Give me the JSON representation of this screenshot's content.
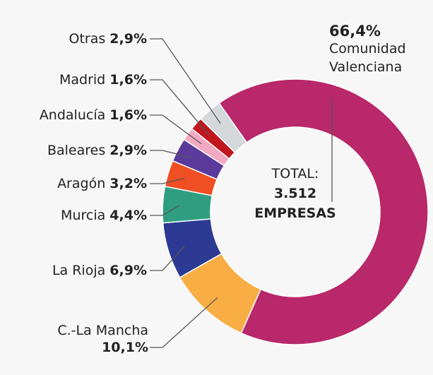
{
  "chart_data": {
    "type": "donut",
    "categories": [
      "Comunidad Valenciana",
      "C.-La Mancha",
      "La Rioja",
      "Murcia",
      "Aragón",
      "Baleares",
      "Andalucía",
      "Madrid",
      "Otras"
    ],
    "values": [
      66.4,
      10.1,
      6.9,
      4.4,
      3.2,
      2.9,
      1.6,
      1.6,
      2.9
    ],
    "value_labels": [
      "66,4%",
      "10,1%",
      "6,9%",
      "4,4%",
      "3,2%",
      "2,9%",
      "1,6%",
      "1,6%",
      "2,9%"
    ],
    "colors": [
      "#b8286a",
      "#f9ad45",
      "#2c3a94",
      "#2f9e80",
      "#f04e23",
      "#5b3a9c",
      "#f4a9c2",
      "#c1161e",
      "#d5d8db"
    ],
    "center_title": "TOTAL:",
    "total": 3512,
    "total_label": "3.512",
    "total_unit": "EMPRESAS"
  }
}
